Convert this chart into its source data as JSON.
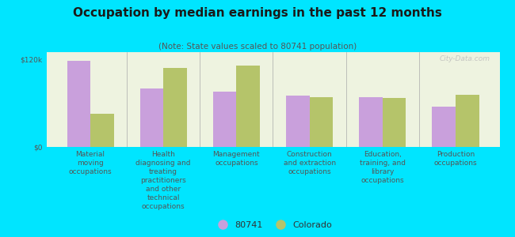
{
  "title": "Occupation by median earnings in the past 12 months",
  "subtitle": "(Note: State values scaled to 80741 population)",
  "background_outer": "#00e5ff",
  "background_inner": "#eef3e0",
  "categories": [
    "Material\nmoving\noccupations",
    "Health\ndiagnosing and\ntreating\npractitioners\nand other\ntechnical\noccupations",
    "Management\noccupations",
    "Construction\nand extraction\noccupations",
    "Education,\ntraining, and\nlibrary\noccupations",
    "Production\noccupations"
  ],
  "values_80741": [
    118000,
    80000,
    76000,
    70000,
    68000,
    55000
  ],
  "values_colorado": [
    45000,
    108000,
    112000,
    68000,
    67000,
    72000
  ],
  "color_80741": "#c9a0dc",
  "color_colorado": "#b5c46a",
  "ylim": [
    0,
    130000
  ],
  "yticks": [
    0,
    120000
  ],
  "ytick_labels": [
    "$0",
    "$120k"
  ],
  "legend_labels": [
    "80741",
    "Colorado"
  ],
  "watermark": "City-Data.com",
  "title_fontsize": 11,
  "subtitle_fontsize": 7.5,
  "tick_label_fontsize": 6.5,
  "legend_fontsize": 8
}
